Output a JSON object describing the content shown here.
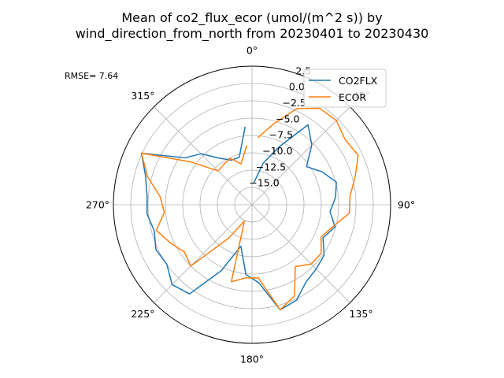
{
  "chart_data": {
    "type": "line",
    "projection": "polar",
    "title_line1": "Mean of co2_flux_ecor (umol/(m^2 s)) by",
    "title_line2": "wind_direction_from_north from 20230401 to 20230430",
    "annotation": "RMSE= 7.64",
    "theta_zero": "N",
    "theta_direction": "clockwise",
    "angle_ticks": [
      0,
      45,
      90,
      135,
      180,
      225,
      270,
      315
    ],
    "angle_tick_labels": [
      "0°",
      "45°",
      "90°",
      "135°",
      "180°",
      "225°",
      "270°",
      "315°"
    ],
    "r_ticks": [
      -15.0,
      -12.5,
      -10.0,
      -7.5,
      -5.0,
      -2.5,
      0.0,
      2.5
    ],
    "r_tick_labels": [
      "−15.0",
      "−12.5",
      "−10.0",
      "−7.5",
      "−5.0",
      "−2.5",
      "0.0",
      "2.5"
    ],
    "rlim": [
      -17.5,
      2.5
    ],
    "grid": true,
    "legend_position": "upper-right",
    "theta_deg": [
      5,
      15,
      25,
      35,
      45,
      55,
      65,
      75,
      85,
      95,
      105,
      115,
      125,
      135,
      145,
      155,
      165,
      175,
      185,
      195,
      205,
      215,
      225,
      235,
      245,
      255,
      265,
      275,
      285,
      295,
      305,
      315,
      325,
      335,
      345,
      355
    ],
    "series": [
      {
        "name": "CO2FLX",
        "color": "#1f77b4",
        "values": [
          -14.3,
          -11.3,
          -8.3,
          -3.4,
          -5.3,
          -7.9,
          -6.3,
          -4.9,
          -5.4,
          -6.2,
          -5.1,
          -6.2,
          -4.8,
          -4.4,
          -3.9,
          -2.3,
          -1.8,
          -6.2,
          -7.4,
          -11.3,
          -7.0,
          -1.8,
          -1.2,
          -2.5,
          -2.2,
          -2.9,
          -2.3,
          -2.3,
          -1.6,
          0.1,
          -5.7,
          -7.1,
          -9.3,
          -10.4,
          -10.4,
          -6.2
        ]
      },
      {
        "name": "ECOR",
        "color": "#ff7f0e",
        "values": [
          -7.8,
          -5.4,
          -2.2,
          -0.5,
          -0.3,
          -1.1,
          -0.6,
          -2.1,
          -3.3,
          -3.4,
          -5.4,
          -6.5,
          -5.3,
          -5.4,
          -6.6,
          -3.0,
          -1.8,
          -6.9,
          -6.9,
          -6.0,
          -14.9,
          -11.6,
          -5.0,
          -5.6,
          -4.5,
          -3.2,
          -4.8,
          -4.2,
          -1.9,
          0.1,
          -6.7,
          -10.6,
          -10.4,
          -10.1,
          -11.4,
          -8.9
        ]
      }
    ]
  }
}
